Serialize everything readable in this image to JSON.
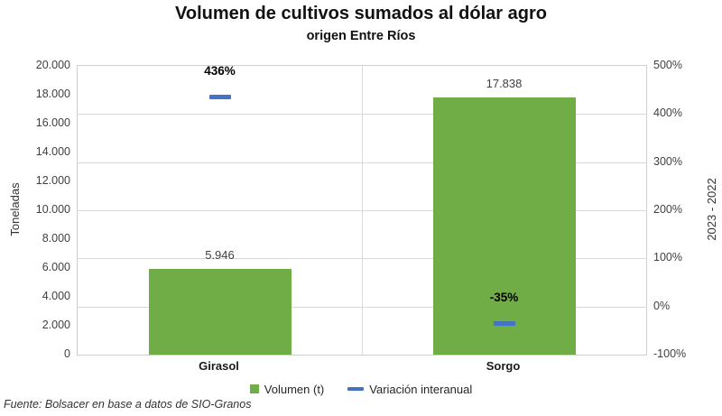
{
  "chart_data": {
    "type": "bar",
    "title": "Volumen de cultivos sumados al dólar agro",
    "subtitle": "origen Entre Ríos",
    "source": "Fuente: Bolsacer en base a datos de SIO-Granos",
    "categories": [
      "Girasol",
      "Sorgo"
    ],
    "series": [
      {
        "name": "Volumen (t)",
        "type": "bar",
        "axis": "left",
        "color": "#70AD47",
        "values": [
          5946,
          17838
        ],
        "labels": [
          "5.946",
          "17.838"
        ]
      },
      {
        "name": "Variación interanual",
        "type": "dash",
        "axis": "right",
        "color": "#4472C4",
        "values": [
          436,
          -35
        ],
        "labels": [
          "436%",
          "-35%"
        ]
      }
    ],
    "ylabel": "Toneladas",
    "y2label": "2023 - 2022",
    "ylim": [
      0,
      20000
    ],
    "y2lim": [
      -100,
      500
    ],
    "yticks": [
      "20.000",
      "18.000",
      "16.000",
      "14.000",
      "12.000",
      "10.000",
      "8.000",
      "6.000",
      "4.000",
      "2.000",
      "0"
    ],
    "y2ticks": [
      "500%",
      "400%",
      "300%",
      "200%",
      "100%",
      "0%",
      "-100%"
    ],
    "grid": true,
    "legend_position": "bottom"
  }
}
